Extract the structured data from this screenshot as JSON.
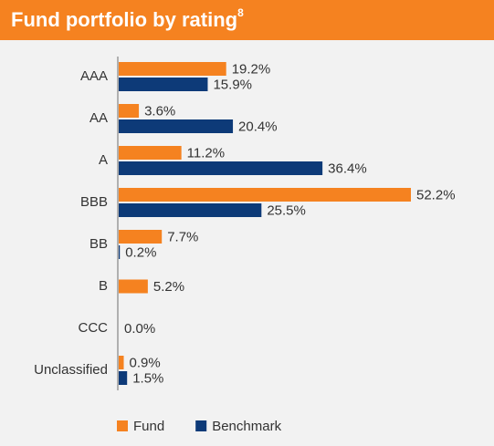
{
  "chart_data": {
    "type": "hbar",
    "title": "Fund portfolio by rating",
    "title_note": "8",
    "categories": [
      "AAA",
      "AA",
      "A",
      "BBB",
      "BB",
      "B",
      "CCC",
      "Unclassified"
    ],
    "series": [
      {
        "name": "Fund",
        "color": "#f58220",
        "values": [
          19.2,
          3.6,
          11.2,
          52.2,
          7.7,
          5.2,
          0.0,
          0.9
        ],
        "value_labels": [
          "19.2%",
          "3.6%",
          "11.2%",
          "52.2%",
          "7.7%",
          "5.2%",
          "0.0%",
          "0.9%"
        ]
      },
      {
        "name": "Benchmark",
        "color": "#0d3a78",
        "values": [
          15.9,
          20.4,
          36.4,
          25.5,
          0.2,
          null,
          null,
          1.5
        ],
        "value_labels": [
          "15.9%",
          "20.4%",
          "36.4%",
          "25.5%",
          "0.2%",
          null,
          null,
          "1.5%"
        ]
      }
    ],
    "legend": "bottom"
  }
}
